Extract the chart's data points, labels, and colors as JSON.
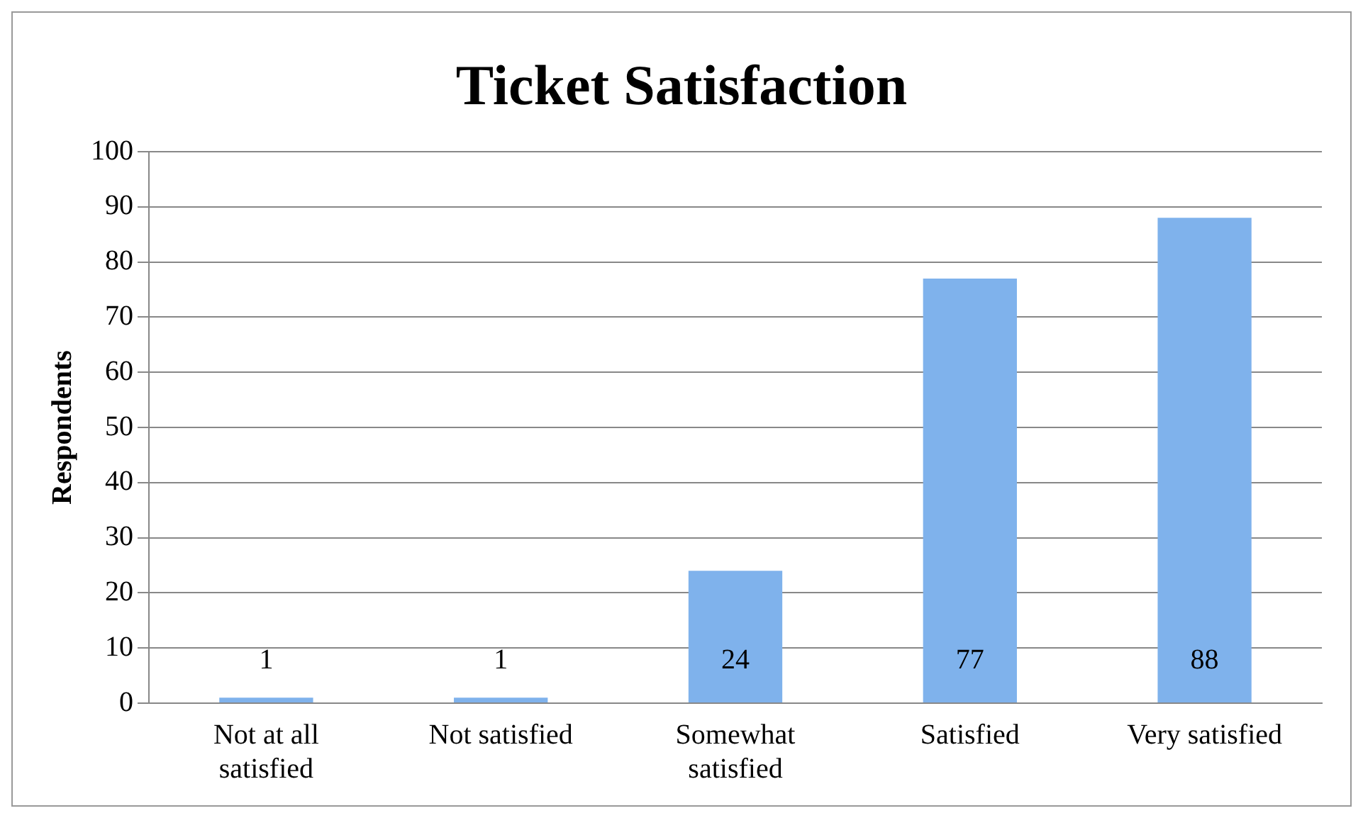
{
  "chart_data": {
    "type": "bar",
    "title": "Ticket Satisfaction",
    "ylabel": "Respondents",
    "categories": [
      "Not at all satisfied",
      "Not satisfied",
      "Somewhat satisfied",
      "Satisfied",
      "Very satisfied"
    ],
    "values": [
      1,
      1,
      24,
      77,
      88
    ],
    "color": "#7fb2ec",
    "ylim": [
      0,
      100
    ],
    "yticks": [
      0,
      10,
      20,
      30,
      40,
      50,
      60,
      70,
      80,
      90,
      100
    ],
    "grid": "y",
    "data_labels": true,
    "legend": false
  }
}
